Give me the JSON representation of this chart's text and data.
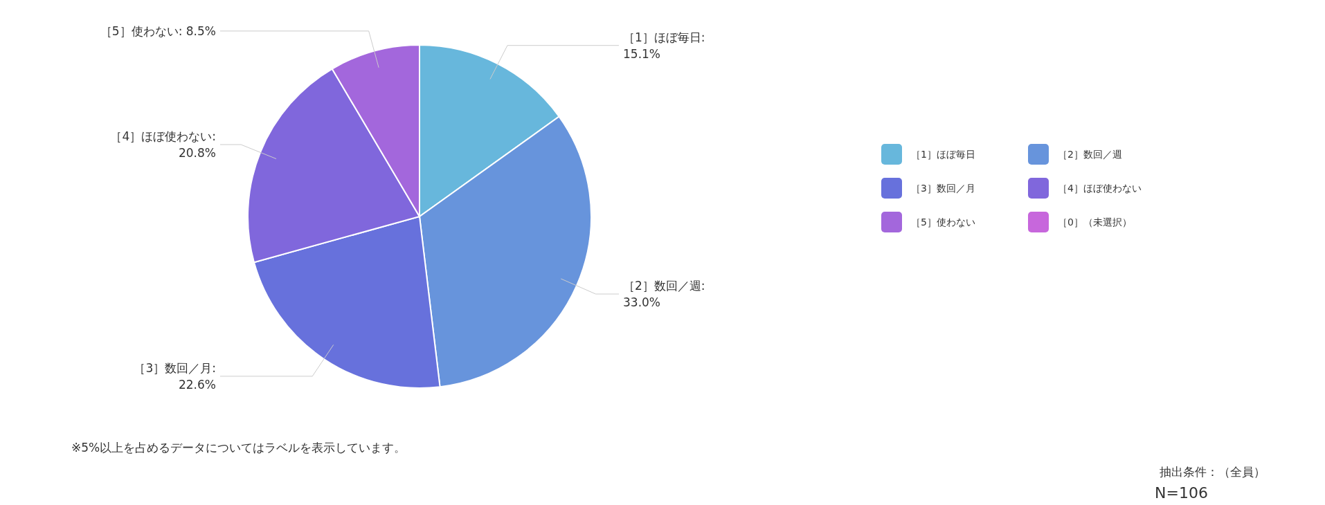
{
  "chart_data": {
    "type": "pie",
    "categories": [
      "［1］ほぼ毎日",
      "［2］数回／週",
      "［3］数回／月",
      "［4］ほぼ使わない",
      "［5］使わない",
      "［0］（未選択）"
    ],
    "values": [
      15.1,
      33.0,
      22.6,
      20.8,
      8.5,
      0
    ],
    "value_labels": [
      "［1］ほぼ毎日:\n15.1%",
      "［2］数回／週:\n33.0%",
      "［3］数回／月:\n22.6%",
      "［4］ほぼ使わない:\n20.8%",
      "［5］使わない: 8.5%",
      null
    ],
    "colors": [
      "#67b7dc",
      "#6794dc",
      "#6771dc",
      "#8067dc",
      "#a367dc",
      "#c767dc"
    ],
    "legend": "right",
    "annotations": [
      "※5%以上を占めるデータについてはラベルを表示しています。",
      "抽出条件：（全員）",
      "N=106"
    ]
  }
}
